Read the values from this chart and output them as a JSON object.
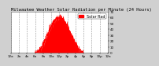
{
  "title": "Milwaukee Weather Solar Radiation per Minute (24 Hours)",
  "bg_color": "#d0d0d0",
  "plot_bg_color": "#ffffff",
  "bar_color": "#ff0000",
  "legend_color": "#ff0000",
  "legend_label": "Solar Rad",
  "grid_color": "#888888",
  "tick_color": "#000000",
  "ylim": [
    0,
    70
  ],
  "xlim": [
    0,
    1440
  ],
  "yticks": [
    0,
    10,
    20,
    30,
    40,
    50,
    60,
    70
  ],
  "xticks": [
    0,
    120,
    240,
    360,
    480,
    600,
    720,
    840,
    960,
    1080,
    1200,
    1320,
    1440
  ],
  "xtick_labels": [
    "12a",
    "2a",
    "4a",
    "6a",
    "8a",
    "10a",
    "12p",
    "2p",
    "4p",
    "6p",
    "8p",
    "10p",
    "12a"
  ],
  "title_fontsize": 4.0,
  "tick_fontsize": 3.0,
  "legend_fontsize": 3.5,
  "solar_peak": 60,
  "sunrise": 360,
  "sunset": 1080,
  "noon": 720
}
